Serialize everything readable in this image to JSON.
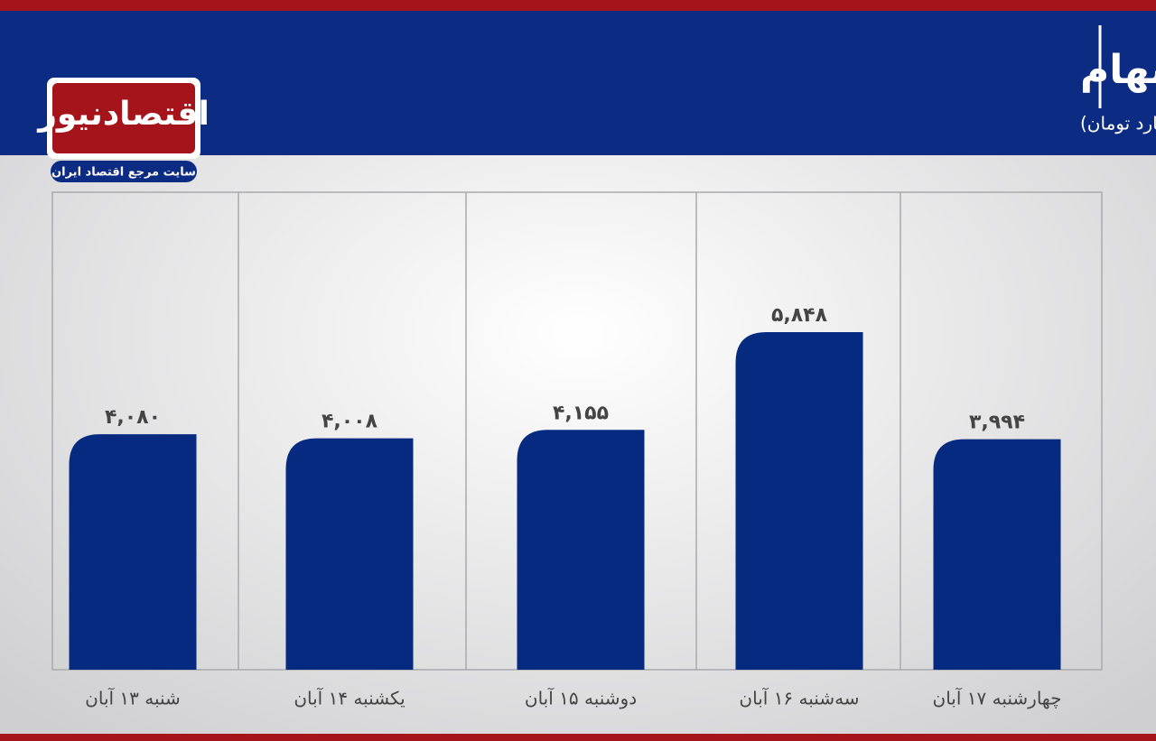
{
  "chart_data": {
    "type": "bar",
    "title": "ارزش معاملات خرد سهام",
    "subtitle": "(واحد:میلیارد تومان)",
    "categories": [
      "شنبه ۱۳ آبان",
      "یکشنبه ۱۴ آبان",
      "دوشنبه ۱۵ آبان",
      "سه‌شنبه ۱۶ آبان",
      "چهارشنبه ۱۷ آبان"
    ],
    "values": [
      4080,
      4008,
      4155,
      5848,
      3994
    ],
    "value_labels": [
      "۴,۰۸۰",
      "۴,۰۰۸",
      "۴,۱۵۵",
      "۵,۸۴۸",
      "۳,۹۹۴"
    ],
    "color": "#062a80"
  },
  "logo": {
    "name": "اقتصادنیوز",
    "tagline": "سایت مرجع اقتصاد ایران"
  }
}
